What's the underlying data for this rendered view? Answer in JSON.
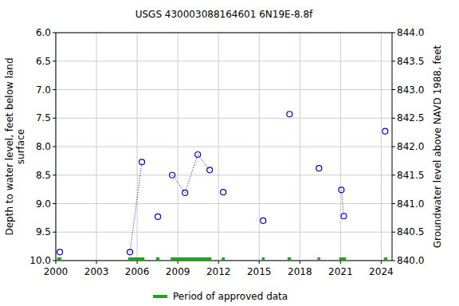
{
  "chart_data": {
    "type": "scatter",
    "title": "USGS 430003088164601 6N19E-8.8f",
    "y_label": "Depth to water level, feet below land surface",
    "y2_label": "Groundwater level above NAVD 1988, feet",
    "x": [
      2000.3,
      2002.9,
      2005.47,
      2006.35,
      2006.9,
      2007.53,
      2008.1,
      2008.59,
      2009.53,
      2010.47,
      2011.35,
      2011.8,
      2012.35,
      2013.8,
      2015.29,
      2016.3,
      2017.24,
      2018.3,
      2019.41,
      2020.2,
      2021.06,
      2021.24,
      2022.8,
      2024.29
    ],
    "series": [
      {
        "color": "#0000cc",
        "marker": "circle",
        "line_style": "dotted",
        "values": [
          9.85,
          null,
          9.85,
          8.27,
          null,
          9.23,
          null,
          8.5,
          8.81,
          8.14,
          8.41,
          null,
          8.8,
          null,
          9.3,
          null,
          7.43,
          null,
          8.38,
          null,
          8.76,
          9.22,
          null,
          7.73
        ]
      }
    ],
    "approved": {
      "name": "Period of approved data",
      "color": "#22a022",
      "periods": [
        [
          2000.1,
          2000.4
        ],
        [
          2005.35,
          2006.53
        ],
        [
          2007.4,
          2007.65
        ],
        [
          2008.47,
          2011.47
        ],
        [
          2012.24,
          2012.47
        ],
        [
          2015.2,
          2015.4
        ],
        [
          2017.1,
          2017.35
        ],
        [
          2019.3,
          2019.5
        ],
        [
          2020.9,
          2021.4
        ],
        [
          2024.2,
          2024.45
        ]
      ]
    },
    "xlim": [
      2000,
      2024.8
    ],
    "xticks": [
      2000,
      2003,
      2006,
      2009,
      2012,
      2015,
      2018,
      2021,
      2024
    ],
    "ylim": [
      10.0,
      6.0
    ],
    "yticks": [
      {
        "value": 6,
        "label": "6.0"
      },
      {
        "value": 6.5,
        "label": "6.5"
      },
      {
        "value": 7,
        "label": "7.0"
      },
      {
        "value": 7.5,
        "label": "7.5"
      },
      {
        "value": 8,
        "label": "8.0"
      },
      {
        "value": 8.5,
        "label": "8.5"
      },
      {
        "value": 9,
        "label": "9.0"
      },
      {
        "value": 9.5,
        "label": "9.5"
      },
      {
        "value": 10,
        "label": "10.0"
      }
    ],
    "y2lim": [
      840.0,
      844.0
    ],
    "y2ticks": [
      {
        "value": 844,
        "label": "844.0"
      },
      {
        "value": 843.5,
        "label": "843.5"
      },
      {
        "value": 843,
        "label": "843.0"
      },
      {
        "value": 842.5,
        "label": "842.5"
      },
      {
        "value": 842,
        "label": "842.0"
      },
      {
        "value": 841.5,
        "label": "841.5"
      },
      {
        "value": 841,
        "label": "841.0"
      },
      {
        "value": 840.5,
        "label": "840.5"
      },
      {
        "value": 840,
        "label": "840.0"
      }
    ],
    "grid": true,
    "legend": "bottom"
  }
}
